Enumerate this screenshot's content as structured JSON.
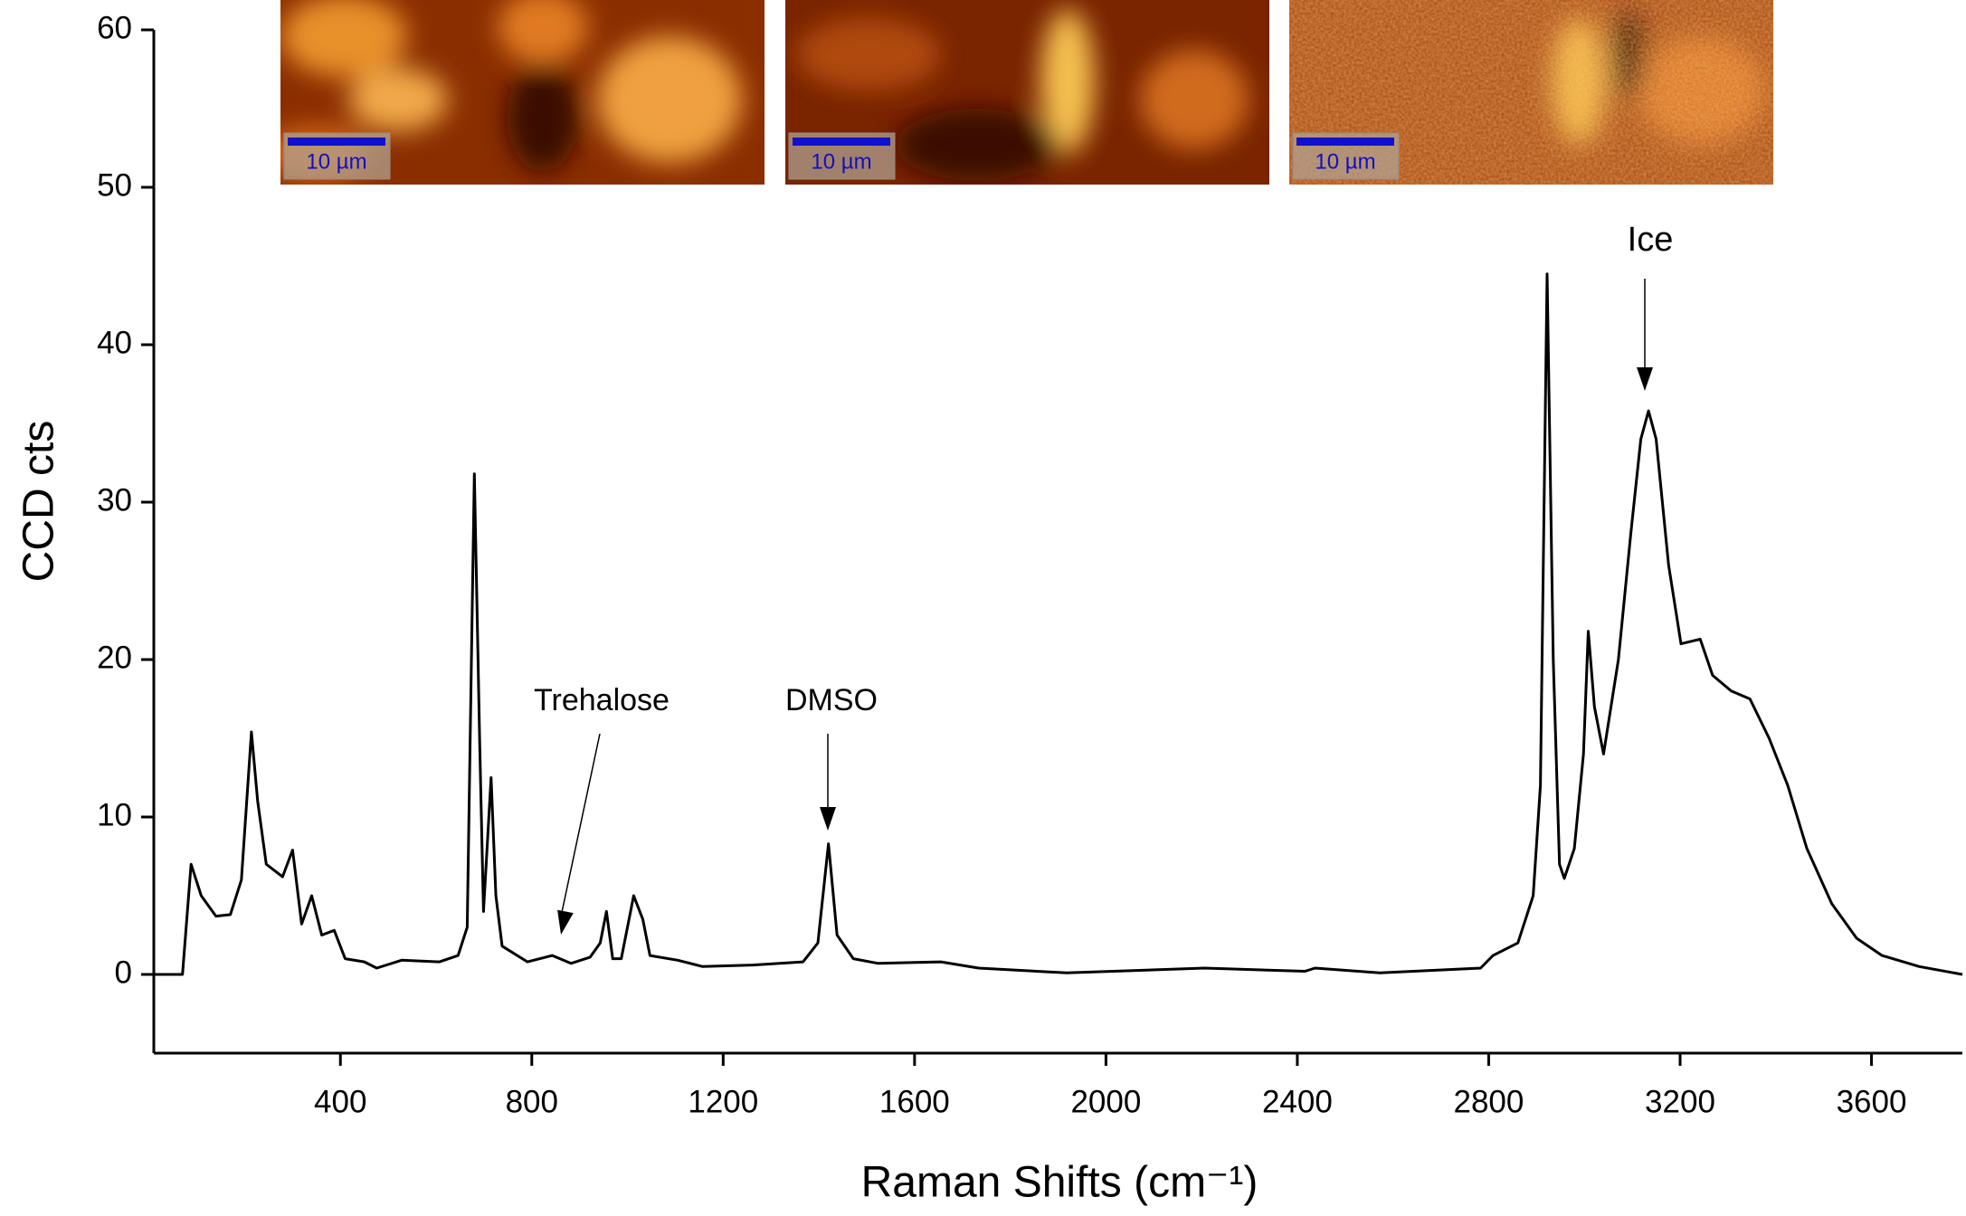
{
  "chart_data": {
    "type": "line",
    "x_label": "Raman Shifts (cm⁻¹)",
    "y_label": "CCD cts",
    "xlim": [
      10,
      3790
    ],
    "ylim": [
      -5,
      60
    ],
    "xticks": [
      400,
      800,
      1200,
      1600,
      2000,
      2400,
      2800,
      3200,
      3600
    ],
    "yticks": [
      0,
      10,
      20,
      30,
      40,
      50,
      60
    ],
    "annotations": [
      "Trehalose",
      "DMSO",
      "Ice"
    ],
    "inset_scale_labels": [
      "10 µm",
      "10 µm",
      "10 µm"
    ],
    "series": [
      {
        "color": "#000000",
        "x": [
          12,
          70,
          88,
          109,
          140,
          170,
          193,
          214,
          227,
          245,
          279,
          300,
          319,
          340,
          361,
          387,
          410,
          450,
          476,
          528,
          607,
          646,
          665,
          680,
          691,
          699,
          715,
          725,
          738,
          791,
          843,
          882,
          922,
          943,
          956,
          969,
          987,
          1013,
          1032,
          1047,
          1105,
          1157,
          1262,
          1367,
          1398,
          1420,
          1438,
          1472,
          1524,
          1655,
          1734,
          1918,
          2206,
          2416,
          2437,
          2573,
          2783,
          2809,
          2861,
          2893,
          2908,
          2922,
          2935,
          2948,
          2958,
          2979,
          2998,
          3008,
          3021,
          3040,
          3071,
          3097,
          3118,
          3134,
          3150,
          3176,
          3202,
          3242,
          3268,
          3307,
          3346,
          3386,
          3425,
          3465,
          3517,
          3569,
          3622,
          3700,
          3790
        ],
        "values": [
          0,
          0,
          7,
          5,
          3.7,
          3.8,
          6,
          15.4,
          11,
          7,
          6.2,
          7.9,
          3.2,
          5,
          2.5,
          2.8,
          1,
          0.8,
          0.4,
          0.9,
          0.8,
          1.2,
          3,
          31.8,
          15,
          4,
          12.5,
          5,
          1.8,
          0.8,
          1.2,
          0.7,
          1.1,
          2,
          4,
          1,
          1,
          5,
          3.5,
          1.2,
          0.9,
          0.5,
          0.6,
          0.8,
          2,
          8.3,
          2.5,
          1,
          0.7,
          0.8,
          0.4,
          0.1,
          0.4,
          0.2,
          0.4,
          0.1,
          0.4,
          1.2,
          2,
          5,
          12,
          44.5,
          20,
          7,
          6.1,
          8,
          14,
          21.8,
          17,
          14,
          20,
          28,
          34,
          35.8,
          34,
          26,
          21,
          21.3,
          19,
          18,
          17.5,
          15,
          12,
          8,
          4.5,
          2.3,
          1.2,
          0.5,
          0
        ]
      }
    ]
  }
}
